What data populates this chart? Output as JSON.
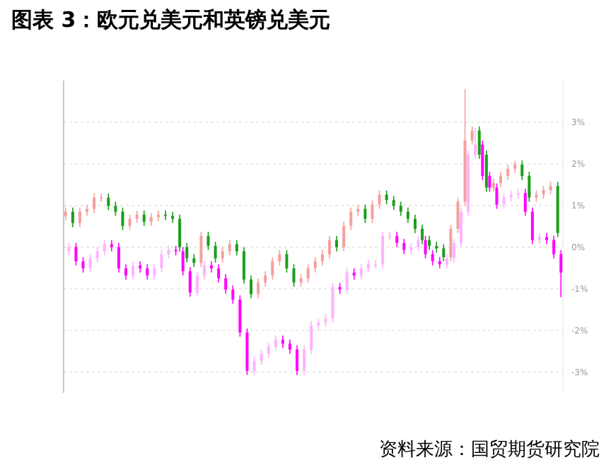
{
  "chart_data": {
    "type": "candlestick",
    "title": "图表 3：欧元兑美元和英镑兑美元",
    "annotations": [
      "资料来源：国贸期货研究院"
    ],
    "categories": [
      null,
      null,
      null,
      null,
      null,
      null,
      null,
      null,
      null,
      null,
      null,
      null,
      null,
      null,
      null,
      null,
      null,
      null,
      null,
      null,
      null,
      null,
      null,
      null,
      null,
      null,
      null,
      null,
      null,
      null,
      null,
      null,
      null,
      null,
      null,
      null,
      null,
      null,
      null,
      null,
      null,
      null,
      null,
      null,
      null,
      null,
      null,
      null,
      null,
      null,
      null,
      null,
      null,
      null,
      null,
      null,
      null,
      null,
      null,
      null,
      null,
      null,
      null,
      null,
      null,
      null,
      null,
      null,
      null,
      null
    ],
    "ylim": [
      -3.5,
      4
    ],
    "yticks": [
      {
        "value": -3,
        "label": "-3%"
      },
      {
        "value": -2,
        "label": "-2%"
      },
      {
        "value": -1,
        "label": "-1%"
      },
      {
        "value": 0,
        "label": "0%"
      },
      {
        "value": 1,
        "label": "1%"
      },
      {
        "value": 2,
        "label": "2%"
      },
      {
        "value": 3,
        "label": "3%"
      }
    ],
    "grid": "y",
    "series": [
      {
        "ohlc": [
          [
            0.75,
            0.95,
            0.65,
            0.85
          ],
          [
            0.85,
            0.95,
            0.48,
            0.58
          ],
          [
            0.58,
            0.95,
            0.48,
            0.85
          ],
          [
            0.85,
            1.02,
            0.75,
            0.92
          ],
          [
            0.92,
            1.29,
            0.82,
            1.19
          ],
          [
            1.19,
            1.29,
            1.09,
            1.19
          ],
          [
            1.19,
            1.29,
            0.89,
            0.99
          ],
          [
            0.99,
            1.09,
            0.75,
            0.85
          ],
          [
            0.85,
            0.95,
            0.41,
            0.51
          ],
          [
            0.51,
            0.78,
            0.41,
            0.68
          ],
          [
            0.68,
            0.88,
            0.58,
            0.78
          ],
          [
            0.78,
            0.88,
            0.51,
            0.61
          ],
          [
            0.61,
            0.82,
            0.51,
            0.72
          ],
          [
            0.72,
            0.88,
            0.62,
            0.78
          ],
          [
            0.78,
            0.88,
            0.65,
            0.75
          ],
          [
            0.75,
            0.85,
            0.58,
            0.68
          ],
          [
            0.68,
            0.78,
            -0.1,
            0
          ],
          [
            0,
            0.1,
            -0.37,
            -0.27
          ],
          [
            -0.27,
            -0.17,
            -0.48,
            -0.38
          ],
          [
            -0.38,
            0.37,
            -0.48,
            0.27
          ],
          [
            0.27,
            0.37,
            -0.07,
            0.03
          ],
          [
            0.03,
            0.13,
            -0.37,
            -0.27
          ],
          [
            -0.27,
            0,
            -0.37,
            -0.1
          ],
          [
            -0.1,
            0.17,
            -0.2,
            0.07
          ],
          [
            0.07,
            0.17,
            -0.2,
            -0.1
          ],
          [
            -0.1,
            0,
            -0.88,
            -0.78
          ],
          [
            -0.78,
            -0.68,
            -1.23,
            -1.13
          ],
          [
            -1.13,
            -0.75,
            -1.23,
            -0.85
          ],
          [
            -0.85,
            -0.58,
            -0.95,
            -0.68
          ],
          [
            -0.68,
            -0.24,
            -0.78,
            -0.34
          ],
          [
            -0.34,
            -0.07,
            -0.44,
            -0.17
          ],
          [
            -0.17,
            -0.07,
            -0.61,
            -0.51
          ],
          [
            -0.51,
            -0.41,
            -0.95,
            -0.85
          ],
          [
            -0.85,
            -0.65,
            -0.95,
            -0.75
          ],
          [
            -0.75,
            -0.41,
            -0.85,
            -0.51
          ],
          [
            -0.51,
            -0.24,
            -0.61,
            -0.34
          ],
          [
            -0.34,
            -0.07,
            -0.44,
            -0.17
          ],
          [
            -0.17,
            0.27,
            -0.27,
            0.17
          ],
          [
            0.17,
            0.27,
            -0.1,
            0
          ],
          [
            0,
            0.61,
            -0.1,
            0.51
          ],
          [
            0.51,
            0.95,
            0.41,
            0.85
          ],
          [
            0.85,
            1.02,
            0.75,
            0.92
          ],
          [
            0.92,
            1.02,
            0.58,
            0.68
          ],
          [
            0.68,
            1.12,
            0.58,
            1.02
          ],
          [
            1.02,
            1.36,
            0.92,
            1.26
          ],
          [
            1.26,
            1.36,
            1.03,
            1.13
          ],
          [
            1.13,
            1.23,
            0.89,
            0.99
          ],
          [
            0.99,
            1.09,
            0.75,
            0.85
          ],
          [
            0.85,
            0.95,
            0.58,
            0.68
          ],
          [
            0.68,
            0.78,
            0.34,
            0.44
          ],
          [
            0.44,
            0.54,
            0.07,
            0.17
          ],
          [
            0.17,
            0.27,
            -0.07,
            0.03
          ],
          [
            0.03,
            0.13,
            -0.13,
            -0.03
          ],
          [
            -0.03,
            0.07,
            -0.34,
            -0.24
          ],
          [
            -0.24,
            0.54,
            -0.34,
            0.44
          ],
          [
            0.44,
            1.19,
            0.34,
            1.09
          ],
          [
            1.09,
            3.8,
            0.99,
            2.56
          ],
          [
            2.56,
            2.9,
            2.46,
            2.8
          ],
          [
            2.8,
            2.9,
            2.12,
            2.22
          ],
          [
            2.22,
            2.32,
            1.33,
            1.43
          ],
          [
            1.43,
            1.64,
            1.33,
            1.54
          ],
          [
            1.54,
            1.81,
            1.44,
            1.71
          ],
          [
            1.71,
            1.98,
            1.61,
            1.88
          ],
          [
            1.88,
            2.08,
            1.78,
            1.98
          ],
          [
            1.98,
            2.08,
            1.61,
            1.71
          ],
          [
            1.71,
            1.81,
            1.09,
            1.19
          ],
          [
            1.19,
            1.36,
            1.09,
            1.26
          ],
          [
            1.26,
            1.47,
            1.16,
            1.37
          ],
          [
            1.37,
            1.57,
            1.27,
            1.47
          ],
          [
            1.47,
            1.57,
            0.24,
            0.34
          ]
        ],
        "colors": [
          "#f4a0a0",
          "#1e9e1e",
          "#f4a0a0",
          "#f4a0a0",
          "#f4a0a0",
          "#f4a0a0",
          "#1e9e1e",
          "#1e9e1e",
          "#1e9e1e",
          "#f4a0a0",
          "#f4a0a0",
          "#1e9e1e",
          "#f4a0a0",
          "#f4a0a0",
          "#1e9e1e",
          "#1e9e1e",
          "#1e9e1e",
          "#1e9e1e",
          "#1e9e1e",
          "#f4a0a0",
          "#1e9e1e",
          "#1e9e1e",
          "#f4a0a0",
          "#f4a0a0",
          "#1e9e1e",
          "#1e9e1e",
          "#1e9e1e",
          "#f4a0a0",
          "#f4a0a0",
          "#f4a0a0",
          "#f4a0a0",
          "#1e9e1e",
          "#1e9e1e",
          "#f4a0a0",
          "#f4a0a0",
          "#f4a0a0",
          "#f4a0a0",
          "#f4a0a0",
          "#1e9e1e",
          "#f4a0a0",
          "#f4a0a0",
          "#f4a0a0",
          "#1e9e1e",
          "#f4a0a0",
          "#f4a0a0",
          "#1e9e1e",
          "#1e9e1e",
          "#1e9e1e",
          "#1e9e1e",
          "#1e9e1e",
          "#1e9e1e",
          "#1e9e1e",
          "#1e9e1e",
          "#1e9e1e",
          "#f4a0a0",
          "#f4a0a0",
          "#f4a0a0",
          "#f4a0a0",
          "#1e9e1e",
          "#1e9e1e",
          "#f4a0a0",
          "#f4a0a0",
          "#f4a0a0",
          "#f4a0a0",
          "#1e9e1e",
          "#1e9e1e",
          "#f4a0a0",
          "#f4a0a0",
          "#f4a0a0",
          "#1e9e1e"
        ]
      },
      {
        "ohlc": [
          [
            -0.1,
            0.1,
            -0.2,
            0
          ],
          [
            0,
            0.1,
            -0.44,
            -0.34
          ],
          [
            -0.34,
            -0.24,
            -0.61,
            -0.51
          ],
          [
            -0.51,
            -0.17,
            -0.61,
            -0.27
          ],
          [
            -0.27,
            0,
            -0.37,
            -0.1
          ],
          [
            -0.1,
            0.17,
            -0.2,
            0.07
          ],
          [
            0.07,
            0.17,
            -0.1,
            0
          ],
          [
            0,
            0.1,
            -0.61,
            -0.51
          ],
          [
            -0.51,
            -0.41,
            -0.78,
            -0.68
          ],
          [
            -0.68,
            -0.34,
            -0.78,
            -0.44
          ],
          [
            -0.44,
            -0.34,
            -0.61,
            -0.51
          ],
          [
            -0.51,
            -0.41,
            -0.78,
            -0.68
          ],
          [
            -0.68,
            -0.41,
            -0.78,
            -0.51
          ],
          [
            -0.51,
            -0.07,
            -0.61,
            -0.17
          ],
          [
            -0.17,
            0.03,
            -0.27,
            -0.07
          ],
          [
            -0.07,
            0.03,
            -0.2,
            -0.1
          ],
          [
            -0.1,
            0,
            -0.68,
            -0.58
          ],
          [
            -0.58,
            -0.48,
            -1.19,
            -1.09
          ],
          [
            -1.09,
            -0.58,
            -1.19,
            -0.68
          ],
          [
            -0.68,
            -0.34,
            -0.78,
            -0.44
          ],
          [
            -0.44,
            -0.34,
            -0.61,
            -0.51
          ],
          [
            -0.51,
            -0.41,
            -0.85,
            -0.75
          ],
          [
            -0.75,
            -0.65,
            -1.12,
            -1.02
          ],
          [
            -1.02,
            -0.92,
            -1.36,
            -1.26
          ],
          [
            -1.26,
            -1.16,
            -2.15,
            -2.05
          ],
          [
            -2.05,
            -1.95,
            -3.07,
            -2.97
          ],
          [
            -2.97,
            -2.63,
            -3.07,
            -2.73
          ],
          [
            -2.73,
            -2.46,
            -2.83,
            -2.56
          ],
          [
            -2.56,
            -2.29,
            -2.66,
            -2.39
          ],
          [
            -2.39,
            -2.12,
            -2.49,
            -2.22
          ],
          [
            -2.22,
            -2.12,
            -2.42,
            -2.32
          ],
          [
            -2.32,
            -2.22,
            -2.56,
            -2.46
          ],
          [
            -2.46,
            -2.36,
            -3.07,
            -2.97
          ],
          [
            -2.97,
            -2.36,
            -3.07,
            -2.46
          ],
          [
            -2.46,
            -1.78,
            -2.56,
            -1.88
          ],
          [
            -1.88,
            -1.71,
            -1.98,
            -1.81
          ],
          [
            -1.81,
            -1.61,
            -1.91,
            -1.71
          ],
          [
            -1.71,
            -0.86,
            -1.81,
            -0.96
          ],
          [
            -0.96,
            -0.86,
            -1.12,
            -1.02
          ],
          [
            -1.02,
            -0.51,
            -1.12,
            -0.61
          ],
          [
            -0.61,
            -0.51,
            -0.78,
            -0.68
          ],
          [
            -0.68,
            -0.41,
            -0.78,
            -0.51
          ],
          [
            -0.51,
            -0.31,
            -0.61,
            -0.41
          ],
          [
            -0.41,
            -0.31,
            -0.51,
            -0.41
          ],
          [
            -0.41,
            0.37,
            -0.51,
            0.27
          ],
          [
            0.27,
            0.37,
            0.17,
            0.27
          ],
          [
            0.27,
            0.37,
            0,
            0.1
          ],
          [
            0.1,
            0.2,
            -0.17,
            -0.07
          ],
          [
            -0.07,
            0.1,
            -0.17,
            0
          ],
          [
            0,
            0.27,
            -0.1,
            0.17
          ],
          [
            0.17,
            0.27,
            -0.27,
            -0.17
          ],
          [
            -0.17,
            -0.07,
            -0.44,
            -0.34
          ],
          [
            -0.34,
            -0.24,
            -0.51,
            -0.41
          ],
          [
            -0.41,
            -0.17,
            -0.51,
            -0.27
          ],
          [
            -0.27,
            0.2,
            -0.37,
            0.1
          ],
          [
            0.1,
            0.95,
            0,
            0.85
          ],
          [
            0.85,
            2.32,
            0.75,
            2.22
          ],
          [
            2.22,
            2.86,
            2.12,
            2.46
          ],
          [
            2.46,
            2.56,
            1.61,
            1.71
          ],
          [
            1.71,
            1.81,
            1.33,
            1.43
          ],
          [
            1.43,
            1.53,
            0.92,
            1.02
          ],
          [
            1.02,
            1.29,
            0.92,
            1.19
          ],
          [
            1.19,
            1.36,
            1.09,
            1.26
          ],
          [
            1.26,
            1.4,
            1.16,
            1.3
          ],
          [
            1.3,
            1.4,
            0.75,
            0.85
          ],
          [
            0.85,
            0.95,
            0.07,
            0.17
          ],
          [
            0.17,
            0.34,
            0.07,
            0.24
          ],
          [
            0.24,
            0.34,
            0.07,
            0.17
          ],
          [
            0.17,
            0.27,
            -0.27,
            -0.17
          ],
          [
            -0.17,
            -0.07,
            -1.2,
            -0.61
          ]
        ],
        "colors": [
          "#ffb3ff",
          "#ff00ff",
          "#ff00ff",
          "#ffb3ff",
          "#ffb3ff",
          "#ffb3ff",
          "#ff00ff",
          "#ff00ff",
          "#ff00ff",
          "#ffb3ff",
          "#ff00ff",
          "#ff00ff",
          "#ffb3ff",
          "#ffb3ff",
          "#ffb3ff",
          "#ff00ff",
          "#ff00ff",
          "#ff00ff",
          "#ffb3ff",
          "#ffb3ff",
          "#ff00ff",
          "#ff00ff",
          "#ff00ff",
          "#ff00ff",
          "#ff00ff",
          "#ff00ff",
          "#ffb3ff",
          "#ffb3ff",
          "#ffb3ff",
          "#ffb3ff",
          "#ff00ff",
          "#ff00ff",
          "#ff00ff",
          "#ffb3ff",
          "#ffb3ff",
          "#ffb3ff",
          "#ffb3ff",
          "#ffb3ff",
          "#ff00ff",
          "#ffb3ff",
          "#ff00ff",
          "#ffb3ff",
          "#ffb3ff",
          "#ffb3ff",
          "#ffb3ff",
          "#ffb3ff",
          "#ff00ff",
          "#ff00ff",
          "#ffb3ff",
          "#ffb3ff",
          "#ff00ff",
          "#ff00ff",
          "#ff00ff",
          "#ffb3ff",
          "#ffb3ff",
          "#ffb3ff",
          "#ffb3ff",
          "#ffb3ff",
          "#ff00ff",
          "#ff00ff",
          "#ff00ff",
          "#ffb3ff",
          "#ffb3ff",
          "#ffb3ff",
          "#ff00ff",
          "#ff00ff",
          "#ffb3ff",
          "#ff00ff",
          "#ff00ff",
          "#ff00ff"
        ]
      }
    ]
  }
}
